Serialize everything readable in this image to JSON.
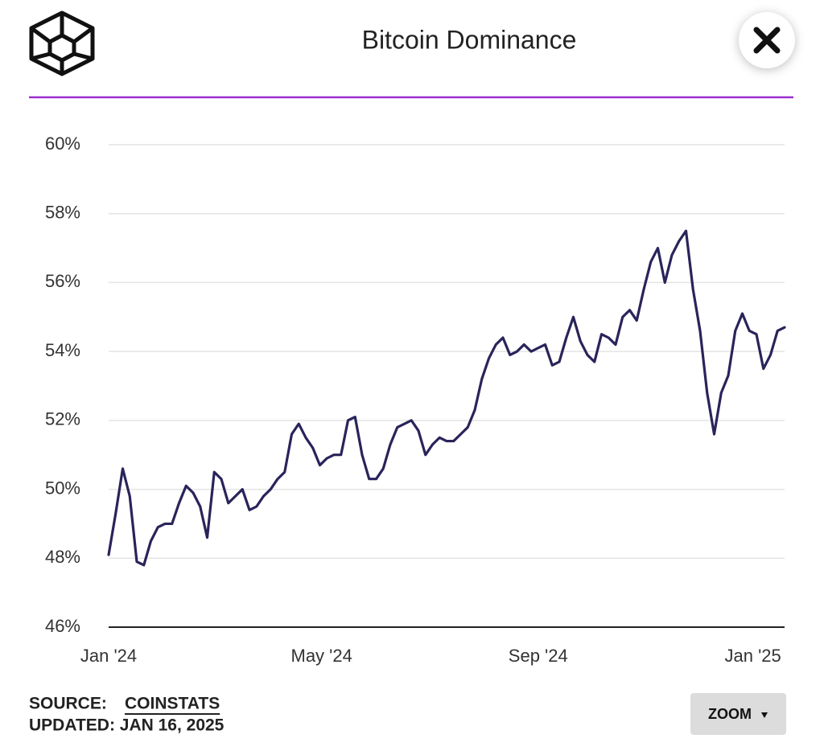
{
  "chart_data": {
    "type": "line",
    "title": "Bitcoin Dominance",
    "xlim": [
      0,
      96
    ],
    "xticks": [
      {
        "value": 0,
        "label": "Jan '24"
      },
      {
        "value": 30.25,
        "label": "May '24"
      },
      {
        "value": 61,
        "label": "Sep '24"
      },
      {
        "value": 91.5,
        "label": "Jan '25"
      }
    ],
    "ylim": [
      46,
      60
    ],
    "yticks": [
      {
        "value": 46,
        "label": "46%"
      },
      {
        "value": 48,
        "label": "48%"
      },
      {
        "value": 50,
        "label": "50%"
      },
      {
        "value": 52,
        "label": "52%"
      },
      {
        "value": 54,
        "label": "54%"
      },
      {
        "value": 56,
        "label": "56%"
      },
      {
        "value": 58,
        "label": "58%"
      },
      {
        "value": 60,
        "label": "60%"
      }
    ],
    "grid": true,
    "color": "#29245a",
    "values": [
      48.1,
      49.3,
      50.6,
      49.8,
      47.9,
      47.8,
      48.5,
      48.9,
      49.0,
      49.0,
      49.6,
      50.1,
      49.9,
      49.5,
      48.6,
      50.5,
      50.3,
      49.6,
      49.8,
      50.0,
      49.4,
      49.5,
      49.8,
      50.0,
      50.3,
      50.5,
      51.6,
      51.9,
      51.5,
      51.2,
      50.7,
      50.9,
      51.0,
      51.0,
      52.0,
      52.1,
      51.0,
      50.3,
      50.3,
      50.6,
      51.3,
      51.8,
      51.9,
      52.0,
      51.7,
      51.0,
      51.3,
      51.5,
      51.4,
      51.4,
      51.6,
      51.8,
      52.3,
      53.2,
      53.8,
      54.2,
      54.4,
      53.9,
      54.0,
      54.2,
      54.0,
      54.1,
      54.2,
      53.6,
      53.7,
      54.4,
      55.0,
      54.3,
      53.9,
      53.7,
      54.5,
      54.4,
      54.2,
      55.0,
      55.2,
      54.9,
      55.8,
      56.6,
      57.0,
      56.0,
      56.8,
      57.2,
      57.5,
      55.8,
      54.6,
      52.8,
      51.6,
      52.8,
      53.3,
      54.6,
      55.1,
      54.6,
      54.5,
      53.5,
      53.9,
      54.6,
      54.7
    ]
  },
  "footer": {
    "source_label": "SOURCE:",
    "source": "COINSTATS",
    "updated": "UPDATED: JAN 16, 2025"
  },
  "controls": {
    "zoom": "ZOOM"
  }
}
